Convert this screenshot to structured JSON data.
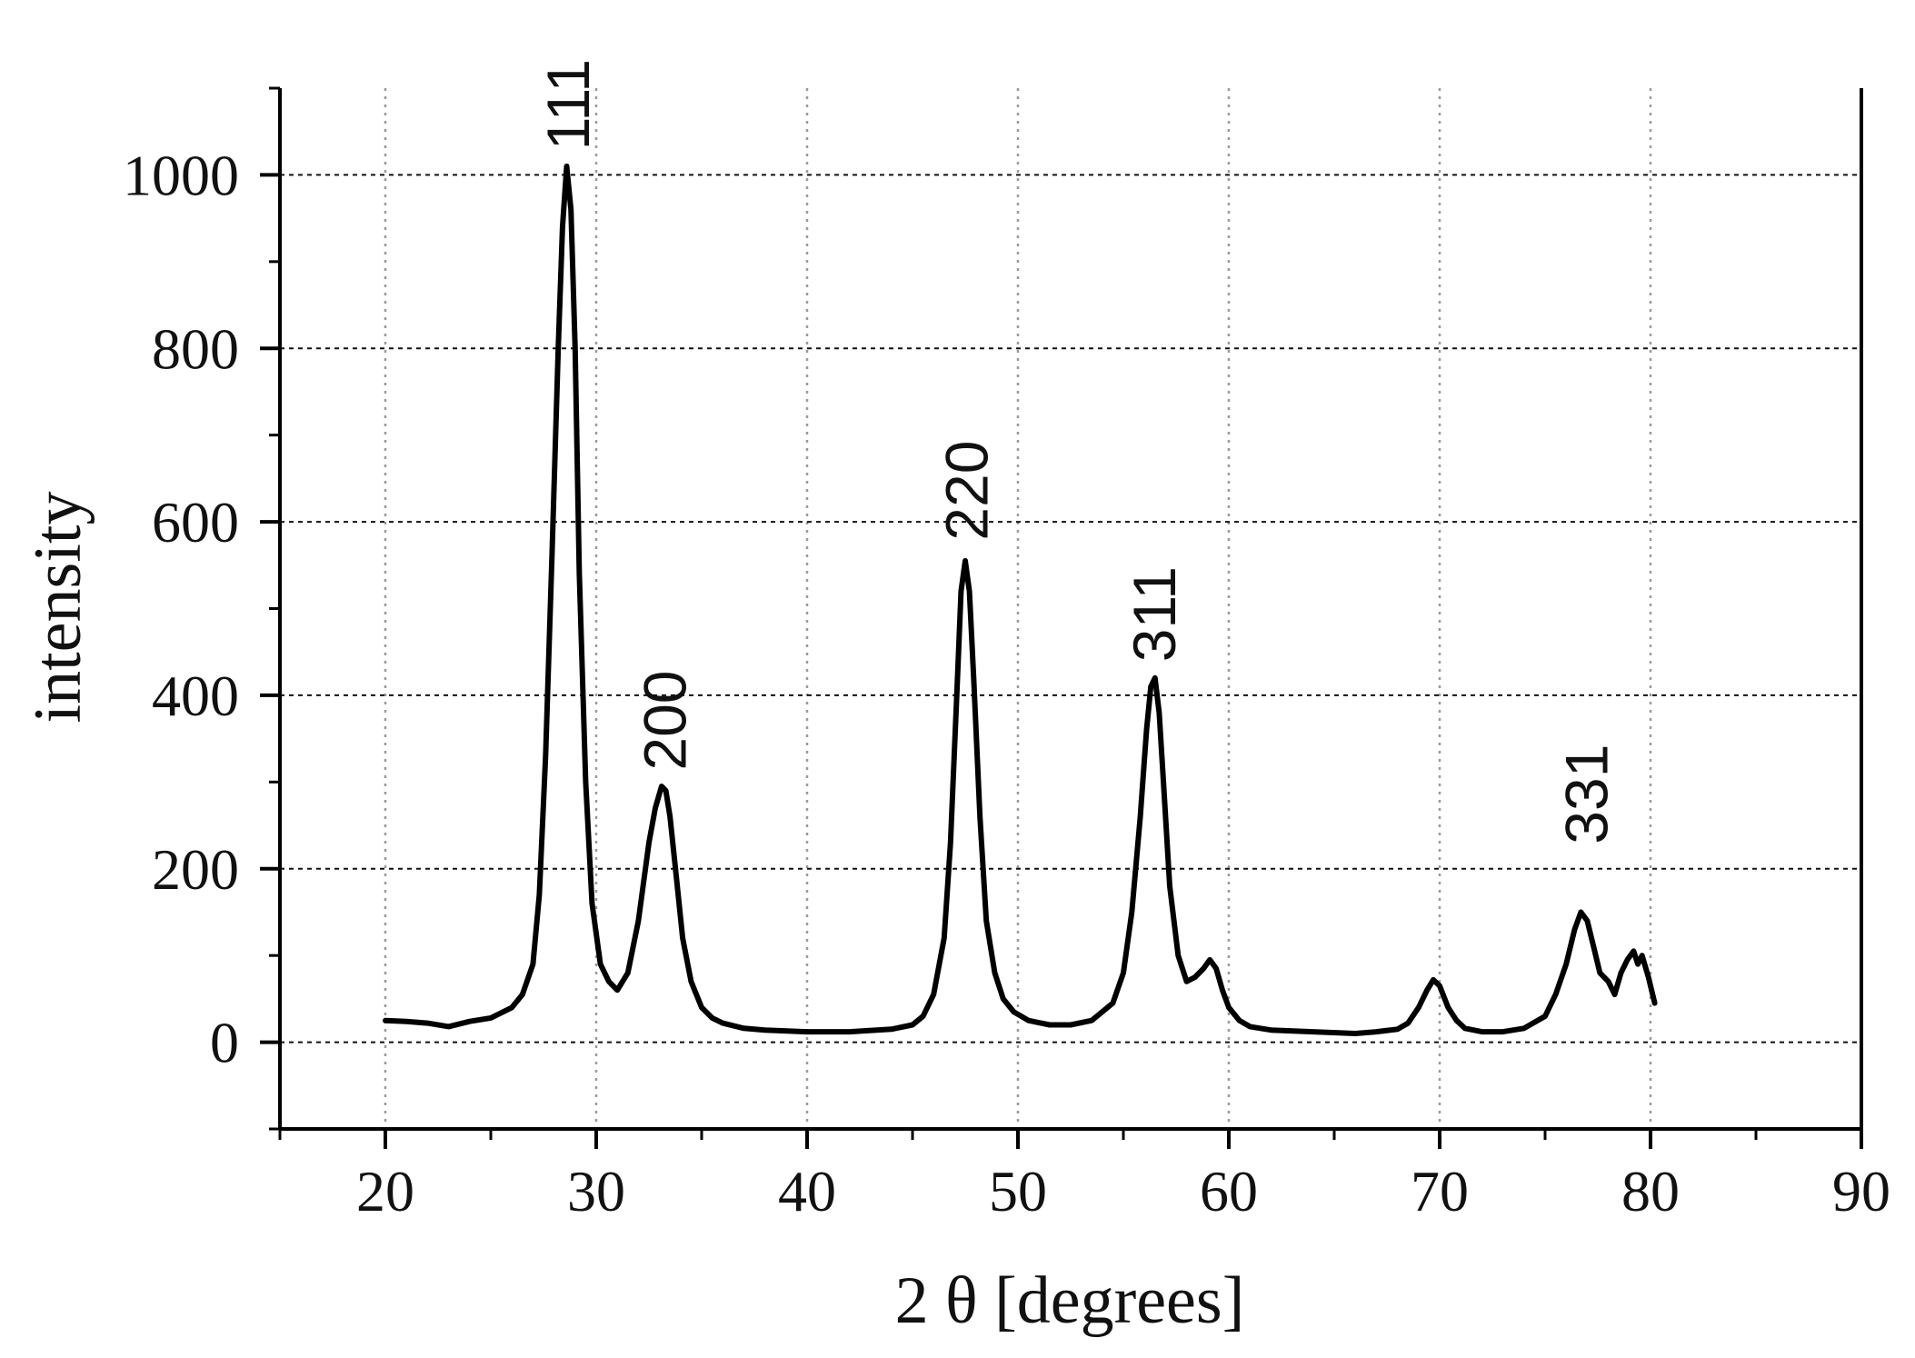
{
  "chart_data": {
    "type": "line",
    "title": "",
    "xlabel": "2 θ [degrees]",
    "ylabel": "intensity",
    "xlim": [
      15,
      90
    ],
    "ylim": [
      -100,
      1100
    ],
    "x_ticks": [
      20,
      30,
      40,
      50,
      60,
      70,
      80,
      90
    ],
    "y_ticks": [
      0,
      200,
      400,
      600,
      800,
      1000
    ],
    "grid": {
      "x": "dotted-gray",
      "y": "dashed-black"
    },
    "legend": "none",
    "line_color": "#000000",
    "series": [
      {
        "x": [
          20,
          21,
          22,
          23,
          24,
          25,
          26,
          26.5,
          27,
          27.3,
          27.6,
          27.9,
          28.2,
          28.4,
          28.6,
          28.8,
          29.0,
          29.2,
          29.5,
          29.8,
          30.2,
          30.6,
          31.0,
          31.5,
          32.0,
          32.5,
          32.8,
          33.1,
          33.3,
          33.5,
          33.8,
          34.1,
          34.5,
          35.0,
          35.5,
          36,
          37,
          38,
          40,
          42,
          44,
          45,
          45.5,
          46.0,
          46.5,
          46.8,
          47.1,
          47.3,
          47.5,
          47.7,
          47.9,
          48.2,
          48.5,
          48.9,
          49.3,
          49.8,
          50.5,
          51.5,
          52.5,
          53.5,
          54.5,
          55.0,
          55.4,
          55.8,
          56.1,
          56.3,
          56.5,
          56.7,
          56.9,
          57.2,
          57.6,
          58.0,
          58.4,
          58.8,
          59.1,
          59.4,
          59.7,
          60.0,
          60.5,
          61.0,
          62,
          64,
          66,
          67,
          68,
          68.5,
          69.0,
          69.4,
          69.7,
          70.0,
          70.4,
          70.8,
          71.2,
          72,
          73,
          74,
          75,
          75.5,
          76.0,
          76.4,
          76.7,
          77.0,
          77.3,
          77.6,
          78.0,
          78.3,
          78.6,
          78.9,
          79.2,
          79.4,
          79.6,
          79.9,
          80.2
        ],
        "y": [
          25,
          24,
          22,
          18,
          24,
          28,
          40,
          55,
          90,
          170,
          330,
          560,
          800,
          940,
          1010,
          960,
          800,
          540,
          300,
          160,
          90,
          70,
          60,
          80,
          140,
          230,
          270,
          295,
          290,
          260,
          190,
          120,
          70,
          40,
          28,
          22,
          16,
          14,
          12,
          12,
          15,
          20,
          30,
          55,
          120,
          230,
          400,
          520,
          555,
          520,
          420,
          260,
          140,
          80,
          50,
          35,
          25,
          20,
          20,
          25,
          45,
          80,
          150,
          260,
          360,
          410,
          420,
          380,
          300,
          180,
          100,
          70,
          75,
          85,
          95,
          85,
          60,
          40,
          25,
          18,
          14,
          12,
          10,
          12,
          15,
          22,
          40,
          60,
          72,
          65,
          40,
          25,
          16,
          12,
          12,
          16,
          30,
          55,
          90,
          130,
          150,
          140,
          110,
          80,
          70,
          55,
          80,
          95,
          105,
          90,
          100,
          75,
          45
        ]
      }
    ],
    "annotations": [
      {
        "text": "111",
        "x": 28.7,
        "y": 1020
      },
      {
        "text": "200",
        "x": 33.3,
        "y": 305
      },
      {
        "text": "220",
        "x": 47.6,
        "y": 570
      },
      {
        "text": "311",
        "x": 56.5,
        "y": 430
      },
      {
        "text": "331",
        "x": 77.0,
        "y": 220
      }
    ]
  }
}
